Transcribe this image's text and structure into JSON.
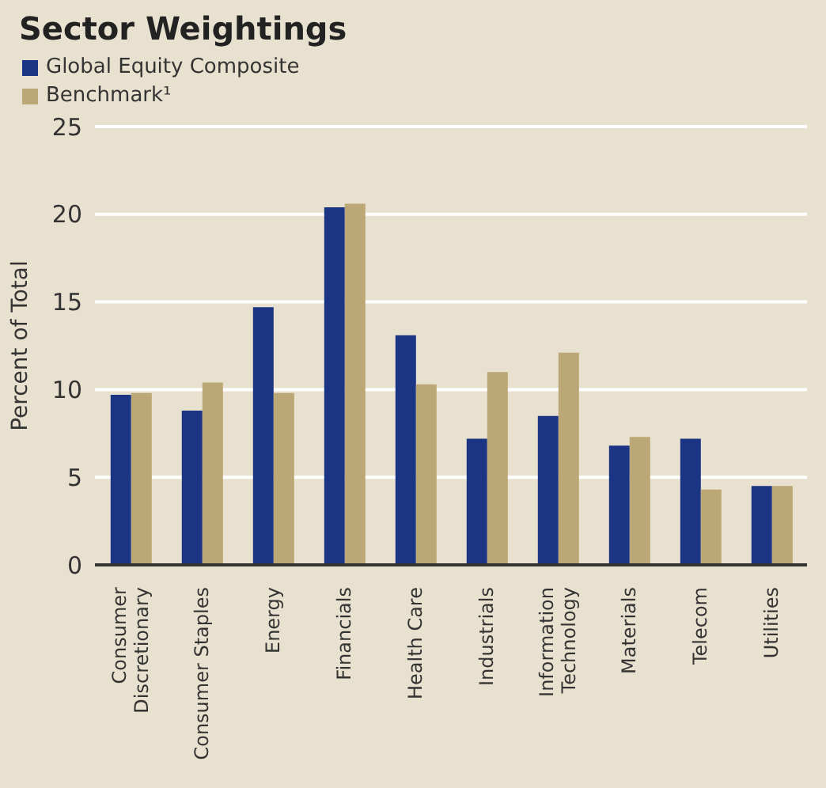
{
  "chart_data": {
    "type": "bar",
    "title": "Sector Weightings",
    "ylabel": "Percent of Total",
    "categories": [
      "Consumer\nDiscretionary",
      "Consumer Staples",
      "Energy",
      "Financials",
      "Health Care",
      "Industrials",
      "Information\nTechnology",
      "Materials",
      "Telecom",
      "Utilities"
    ],
    "series": [
      {
        "name": "Global Equity Composite",
        "color": "#1b3484",
        "values": [
          9.7,
          8.8,
          14.7,
          20.4,
          13.1,
          7.2,
          8.5,
          6.8,
          7.2,
          4.5
        ]
      },
      {
        "name": "Benchmark¹",
        "color": "#bca876",
        "values": [
          9.8,
          10.4,
          9.8,
          20.6,
          10.3,
          11.0,
          12.1,
          7.3,
          4.3,
          4.5
        ]
      }
    ],
    "ylim": [
      0,
      25
    ],
    "yticks": [
      0,
      5,
      10,
      15,
      20,
      25
    ],
    "grid": "y",
    "legend": "top left"
  }
}
